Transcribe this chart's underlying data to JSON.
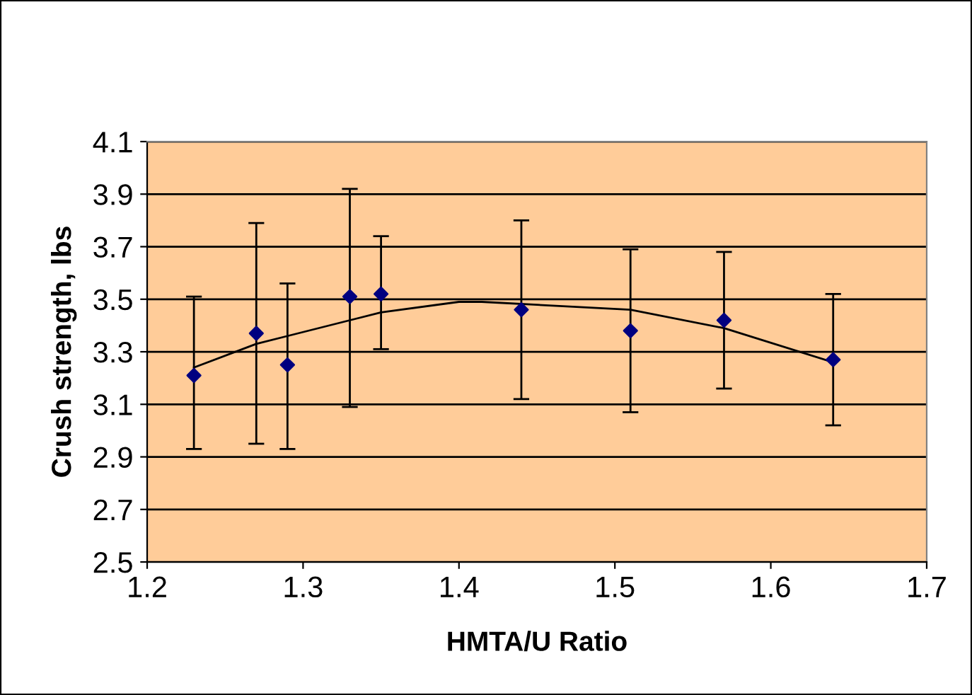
{
  "chart_data": {
    "type": "scatter",
    "xlabel": "HMTA/U Ratio",
    "ylabel": "Crush strength, lbs",
    "x": [
      1.23,
      1.27,
      1.29,
      1.33,
      1.35,
      1.44,
      1.51,
      1.57,
      1.64
    ],
    "series": [
      {
        "color": "#000080",
        "marker": "diamond",
        "values": [
          3.21,
          3.37,
          3.25,
          3.51,
          3.52,
          3.46,
          3.38,
          3.42,
          3.27
        ],
        "errors": [
          [
            2.93,
            3.51
          ],
          [
            2.95,
            3.79
          ],
          [
            2.93,
            3.56
          ],
          [
            3.09,
            3.92
          ],
          [
            3.31,
            3.74
          ],
          [
            3.12,
            3.8
          ],
          [
            3.07,
            3.69
          ],
          [
            3.16,
            3.68
          ],
          [
            3.02,
            3.52
          ]
        ]
      },
      {
        "type": "line",
        "color": "#000000",
        "marker": "none",
        "x": [
          1.23,
          1.27,
          1.29,
          1.33,
          1.35,
          1.4,
          1.4145,
          1.51,
          1.57,
          1.64
        ],
        "values": [
          3.24,
          3.33,
          3.36,
          3.42,
          3.45,
          3.49,
          3.49,
          3.46,
          3.39,
          3.26
        ]
      }
    ],
    "xlim": [
      1.2,
      1.7
    ],
    "xticks": [
      1.2,
      1.3,
      1.4,
      1.5,
      1.6,
      1.7
    ],
    "ylim": [
      2.5,
      4.1
    ],
    "yticks": [
      2.5,
      2.7,
      2.9,
      3.1,
      3.3,
      3.5,
      3.7,
      3.9,
      4.1
    ],
    "grid": "y",
    "legend": false
  }
}
